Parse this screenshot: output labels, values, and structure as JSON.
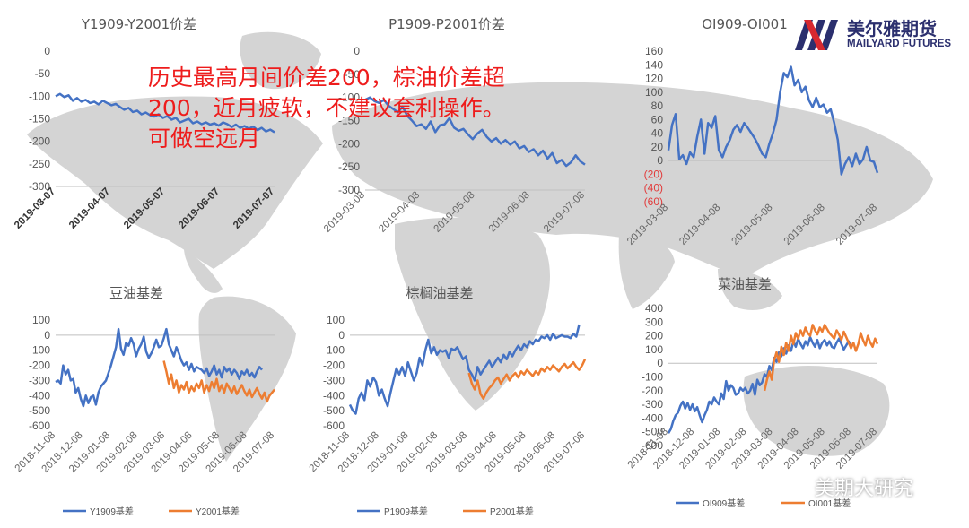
{
  "annotation": {
    "text": "历史最高月间价差200，棕油价差超200，近月疲软，不建议套利操作。可做空远月"
  },
  "logo": {
    "name_cn": "美尔雅期货",
    "name_en": "MAILYARD FUTURES",
    "brand_color": "#2b2f6e"
  },
  "watermark": {
    "text": "美期大研究",
    "accent_color": "#f07e22"
  },
  "colors": {
    "series_blue": "#4472c4",
    "series_orange": "#ed7d31",
    "annotation_red": "#ee1c1c",
    "map_gray": "#d4d4d4"
  },
  "chart_data": [
    {
      "id": "c1",
      "type": "line",
      "title": "Y1909-Y2001价差",
      "ylim": [
        -300,
        0
      ],
      "yticks": [
        "0",
        "-50",
        "-100",
        "-150",
        "-200",
        "-250",
        "-300"
      ],
      "xticks": [
        "2019-03-07",
        "2019-04-07",
        "2019-05-07",
        "2019-06-07",
        "2019-07-07"
      ],
      "xtick_style": "bold-dark",
      "grid": false,
      "legend": "none",
      "series": [
        {
          "color": "#4472c4",
          "values": [
            -100,
            -95,
            -102,
            -98,
            -110,
            -104,
            -112,
            -108,
            -115,
            -112,
            -118,
            -110,
            -115,
            -120,
            -117,
            -124,
            -130,
            -126,
            -135,
            -132,
            -140,
            -136,
            -142,
            -145,
            -140,
            -148,
            -144,
            -152,
            -148,
            -158,
            -154,
            -150,
            -160,
            -156,
            -162,
            -158,
            -163,
            -160,
            -165,
            -158,
            -162,
            -168,
            -163,
            -170,
            -166,
            -172,
            -167,
            -175,
            -170,
            -178,
            -174,
            -180
          ]
        }
      ]
    },
    {
      "id": "c2",
      "type": "line",
      "title": "P1909-P2001价差",
      "ylim": [
        -300,
        0
      ],
      "yticks": [
        "0",
        "-50",
        "-100",
        "-150",
        "-200",
        "-250",
        "-300"
      ],
      "xticks": [
        "2019-03-08",
        "2019-04-08",
        "2019-05-08",
        "2019-06-08",
        "2019-07-08"
      ],
      "grid": false,
      "legend": "none",
      "series": [
        {
          "color": "#4472c4",
          "values": [
            -105,
            -100,
            -108,
            -112,
            -105,
            -118,
            -125,
            -132,
            -120,
            -140,
            -150,
            -162,
            -158,
            -168,
            -152,
            -175,
            -160,
            -158,
            -145,
            -165,
            -172,
            -168,
            -180,
            -190,
            -178,
            -170,
            -185,
            -195,
            -188,
            -200,
            -192,
            -202,
            -195,
            -210,
            -205,
            -218,
            -212,
            -225,
            -215,
            -232,
            -220,
            -242,
            -235,
            -248,
            -240,
            -225,
            -238,
            -245
          ]
        }
      ]
    },
    {
      "id": "c3",
      "type": "line",
      "title": "OI909-OI001",
      "ylim": [
        -60,
        160
      ],
      "yticks": [
        "160",
        "140",
        "120",
        "100",
        "80",
        "60",
        "40",
        "20",
        "0",
        "(20)",
        "(40)",
        "(60)"
      ],
      "xticks": [
        "2019-03-08",
        "2019-04-08",
        "2019-05-08",
        "2019-06-08",
        "2019-07-08"
      ],
      "grid": false,
      "legend": "none",
      "series": [
        {
          "color": "#4472c4",
          "values": [
            15,
            52,
            68,
            2,
            8,
            -5,
            12,
            5,
            35,
            60,
            10,
            55,
            48,
            65,
            15,
            5,
            20,
            30,
            45,
            52,
            42,
            55,
            48,
            40,
            32,
            22,
            10,
            5,
            25,
            40,
            60,
            100,
            128,
            122,
            137,
            110,
            118,
            100,
            108,
            88,
            78,
            92,
            78,
            82,
            70,
            75,
            55,
            30,
            -20,
            -5,
            5,
            -8,
            10,
            -5,
            2,
            20,
            0,
            -2,
            -18
          ]
        }
      ]
    },
    {
      "id": "c4",
      "type": "line",
      "title": "豆油基差",
      "ylim": [
        -600,
        100
      ],
      "yticks": [
        "100",
        "0",
        "-100",
        "-200",
        "-300",
        "-400",
        "-500",
        "-600"
      ],
      "xticks": [
        "2018-11-08",
        "2018-12-08",
        "2019-01-08",
        "2019-02-08",
        "2019-03-08",
        "2019-04-08",
        "2019-05-08",
        "2019-06-08",
        "2019-07-08"
      ],
      "grid": false,
      "legend": "bottom",
      "series": [
        {
          "name": "Y1909基差",
          "color": "#4472c4",
          "values": [
            -310,
            -300,
            -320,
            -200,
            -260,
            -230,
            -300,
            -290,
            -380,
            -350,
            -420,
            -470,
            -400,
            -450,
            -410,
            -400,
            -460,
            -380,
            -340,
            -320,
            -300,
            -250,
            -200,
            -140,
            -80,
            40,
            -90,
            -130,
            -50,
            -70,
            -20,
            -60,
            -140,
            -90,
            -60,
            -10,
            -110,
            -150,
            -120,
            -80,
            -30,
            -80,
            -70,
            -20,
            40,
            -60,
            -100,
            -140,
            -80,
            -120,
            -170,
            -200,
            -180,
            -230,
            -190,
            -240,
            -210,
            -220,
            -230,
            -250,
            -220,
            -270,
            -240,
            -200,
            -260,
            -230,
            -280,
            -210,
            -240,
            -220,
            -260,
            -230,
            -250,
            -290,
            -240,
            -260,
            -230,
            -270,
            -250,
            -280,
            -240,
            -210,
            -230
          ]
        },
        {
          "name": "Y2001基差",
          "color": "#ed7d31",
          "start": 43,
          "values": [
            -170,
            -240,
            -320,
            -260,
            -350,
            -300,
            -380,
            -330,
            -360,
            -310,
            -380,
            -340,
            -370,
            -320,
            -350,
            -300,
            -380,
            -330,
            -370,
            -310,
            -350,
            -290,
            -370,
            -330,
            -380,
            -320,
            -350,
            -380,
            -340,
            -390,
            -360,
            -330,
            -370,
            -400,
            -360,
            -410,
            -380,
            -350,
            -390,
            -420,
            -380,
            -440,
            -400,
            -380,
            -360
          ]
        }
      ]
    },
    {
      "id": "c5",
      "type": "line",
      "title": "棕榈油基差",
      "ylim": [
        -600,
        100
      ],
      "yticks": [
        "100",
        "0",
        "-100",
        "-200",
        "-300",
        "-400",
        "-500",
        "-600"
      ],
      "xticks": [
        "2018-11-08",
        "2018-12-08",
        "2019-01-08",
        "2019-02-08",
        "2019-03-08",
        "2019-04-08",
        "2019-05-08",
        "2019-06-08",
        "2019-07-08"
      ],
      "grid": false,
      "legend": "bottom",
      "series": [
        {
          "name": "P1909基差",
          "color": "#4472c4",
          "values": [
            -460,
            -500,
            -520,
            -420,
            -380,
            -430,
            -300,
            -340,
            -280,
            -310,
            -400,
            -360,
            -420,
            -470,
            -380,
            -300,
            -220,
            -260,
            -210,
            -270,
            -180,
            -240,
            -300,
            -250,
            -150,
            -200,
            -100,
            -30,
            -120,
            -80,
            -130,
            -100,
            -110,
            -100,
            -150,
            -90,
            -100,
            -80,
            -120,
            -160,
            -140,
            -230,
            -260,
            -300,
            -210,
            -260,
            -230,
            -200,
            -170,
            -210,
            -180,
            -150,
            -180,
            -130,
            -160,
            -110,
            -140,
            -100,
            -70,
            -100,
            -60,
            -80,
            -40,
            -60,
            -30,
            -40,
            -10,
            -20,
            0,
            -30,
            10,
            -20,
            -10,
            0,
            -10,
            -10,
            -20,
            10,
            -10,
            70
          ]
        },
        {
          "name": "P2001基差",
          "color": "#ed7d31",
          "start": 41,
          "values": [
            -250,
            -320,
            -360,
            -300,
            -390,
            -420,
            -380,
            -350,
            -330,
            -300,
            -280,
            -320,
            -290,
            -260,
            -300,
            -270,
            -250,
            -280,
            -240,
            -260,
            -230,
            -250,
            -270,
            -240,
            -260,
            -220,
            -240,
            -210,
            -230,
            -200,
            -220,
            -240,
            -210,
            -190,
            -220,
            -200,
            -180,
            -210,
            -230,
            -200,
            -160
          ]
        }
      ]
    },
    {
      "id": "c6",
      "type": "line",
      "title": "菜油基差",
      "ylim": [
        -600,
        400
      ],
      "yticks": [
        "400",
        "300",
        "200",
        "100",
        "0",
        "-100",
        "-200",
        "-300",
        "-400",
        "-500",
        "-600"
      ],
      "xticks": [
        "2018-11-08",
        "2018-12-08",
        "2019-01-08",
        "2019-02-08",
        "2019-03-08",
        "2019-04-08",
        "2019-05-08",
        "2019-06-08",
        "2019-07-08"
      ],
      "grid": false,
      "legend": "bottom",
      "series": [
        {
          "name": "OI909基差",
          "color": "#4472c4",
          "values": [
            -510,
            -480,
            -420,
            -380,
            -360,
            -310,
            -280,
            -330,
            -290,
            -340,
            -300,
            -350,
            -320,
            -380,
            -430,
            -380,
            -340,
            -280,
            -300,
            -250,
            -280,
            -300,
            -220,
            -260,
            -130,
            -200,
            -160,
            -180,
            -230,
            -220,
            -180,
            -200,
            -180,
            -220,
            -200,
            -150,
            -230,
            -120,
            -160,
            -140,
            -80,
            -100,
            -20,
            -50,
            40,
            10,
            80,
            50,
            110,
            70,
            130,
            90,
            160,
            120,
            180,
            140,
            110,
            160,
            130,
            190,
            150,
            120,
            170,
            110,
            150,
            170,
            130,
            160,
            120,
            110,
            150,
            180,
            140,
            100,
            130,
            160,
            120,
            140
          ]
        },
        {
          "name": "OI001基差",
          "color": "#ed7d31",
          "start": 40,
          "values": [
            -200,
            -120,
            -60,
            -120,
            20,
            80,
            10,
            120,
            60,
            150,
            90,
            200,
            140,
            220,
            180,
            240,
            200,
            260,
            220,
            200,
            280,
            240,
            210,
            260,
            230,
            280,
            250,
            220,
            200,
            180,
            240,
            210,
            170,
            230,
            190,
            150,
            110,
            150,
            90,
            140,
            220,
            170,
            130,
            200,
            150,
            120,
            180,
            140
          ]
        }
      ]
    }
  ]
}
